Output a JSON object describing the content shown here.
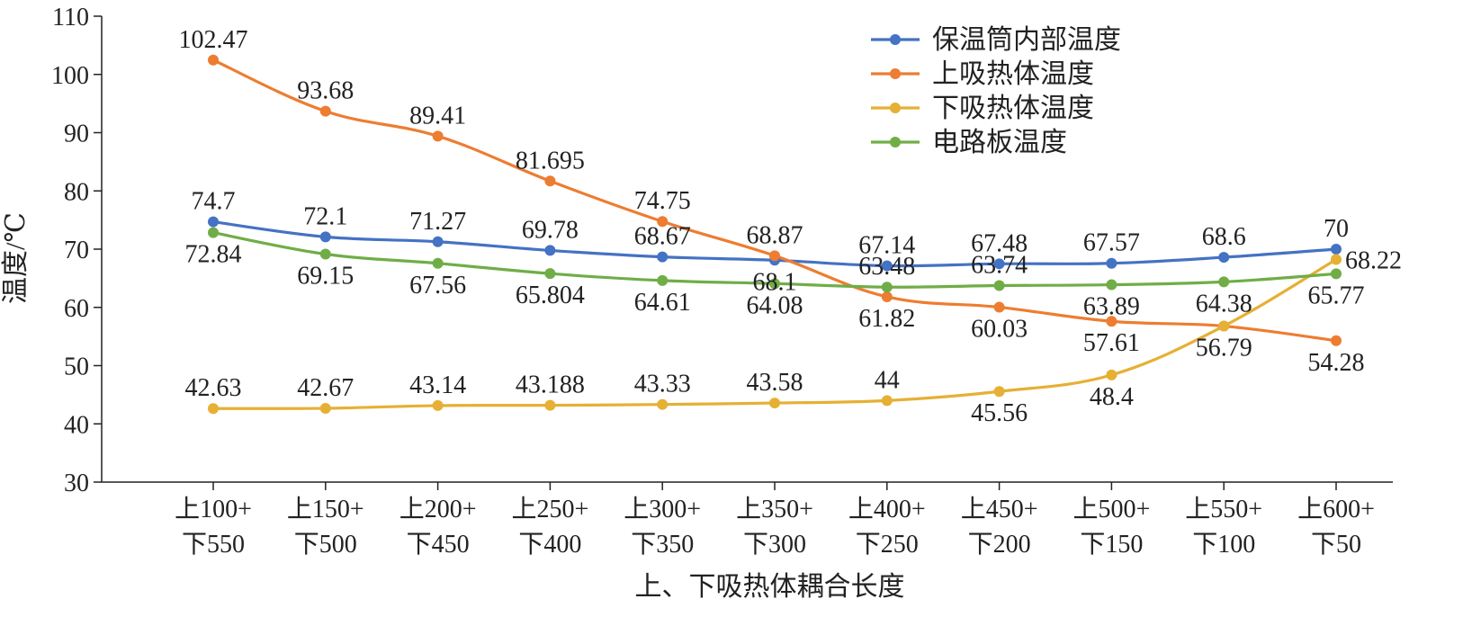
{
  "chart_data": {
    "type": "line",
    "title": "",
    "xlabel": "上、下吸热体耦合长度",
    "ylabel": "温度/℃",
    "ylim": [
      30,
      110
    ],
    "yticks": [
      "30",
      "40",
      "50",
      "60",
      "70",
      "80",
      "90",
      "100",
      "110"
    ],
    "categories": [
      [
        "上100+",
        "下550"
      ],
      [
        "上150+",
        "下500"
      ],
      [
        "上200+",
        "下450"
      ],
      [
        "上250+",
        "下400"
      ],
      [
        "上300+",
        "下350"
      ],
      [
        "上350+",
        "下300"
      ],
      [
        "上400+",
        "下250"
      ],
      [
        "上450+",
        "下200"
      ],
      [
        "上500+",
        "下150"
      ],
      [
        "上550+",
        "下100"
      ],
      [
        "上600+",
        "下50"
      ]
    ],
    "grid": false,
    "legend_position": "top-right",
    "series": [
      {
        "name": "保温筒内部温度",
        "color": "#4472C4",
        "values": [
          74.7,
          72.1,
          71.27,
          69.78,
          68.67,
          68.1,
          67.14,
          67.48,
          67.57,
          68.6,
          70
        ],
        "labels": [
          "74.7",
          "72.1",
          "71.27",
          "69.78",
          "68.67",
          "68.1",
          "67.14",
          "67.48",
          "67.57",
          "68.6",
          "70"
        ]
      },
      {
        "name": "上吸热体温度",
        "color": "#ED7D31",
        "values": [
          102.47,
          93.68,
          89.41,
          81.695,
          74.75,
          68.87,
          61.82,
          60.03,
          57.61,
          56.79,
          54.28
        ],
        "labels": [
          "102.47",
          "93.68",
          "89.41",
          "81.695",
          "74.75",
          "68.87",
          "61.82",
          "60.03",
          "57.61",
          "56.79",
          "54.28"
        ]
      },
      {
        "name": "下吸热体温度",
        "color": "#E5B034",
        "values": [
          42.63,
          42.67,
          43.14,
          43.188,
          43.33,
          43.58,
          44,
          45.56,
          48.4,
          56.79,
          68.22
        ],
        "labels": [
          "42.63",
          "42.67",
          "43.14",
          "43.188",
          "43.33",
          "43.58",
          "44",
          "45.56",
          "48.4",
          "",
          "68.22"
        ]
      },
      {
        "name": "电路板温度",
        "color": "#70AD47",
        "values": [
          72.84,
          69.15,
          67.56,
          65.804,
          64.61,
          64.08,
          63.48,
          63.74,
          63.89,
          64.38,
          65.77
        ],
        "labels": [
          "72.84",
          "69.15",
          "67.56",
          "65.804",
          "64.61",
          "64.08",
          "63.48",
          "63.74",
          "63.89",
          "64.38",
          "65.77"
        ]
      }
    ]
  }
}
